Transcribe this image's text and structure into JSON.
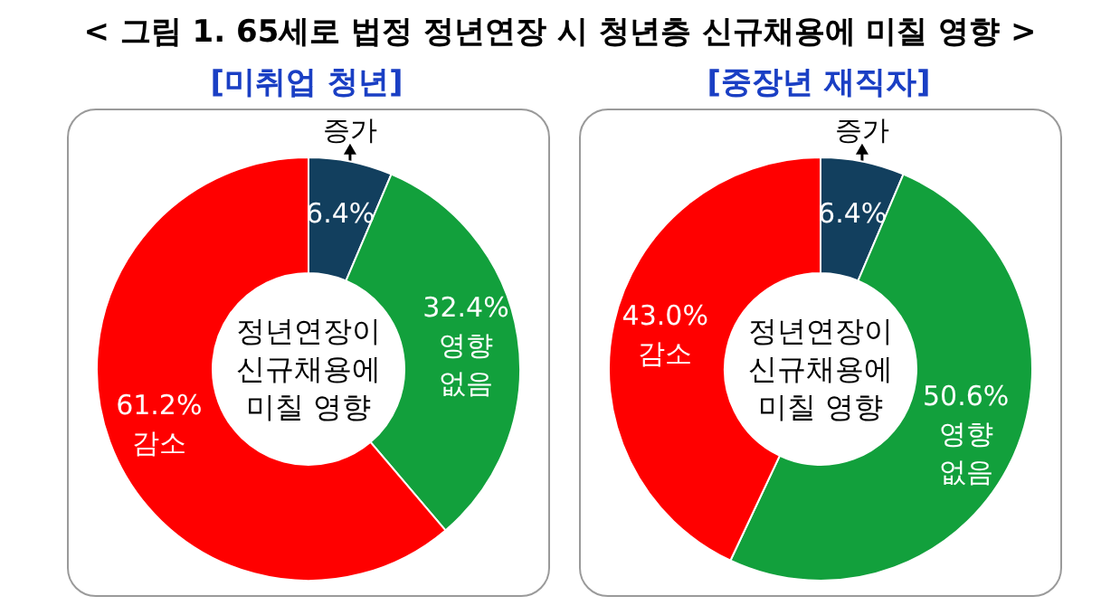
{
  "chart_data": [
    {
      "type": "donut",
      "title": "< 그림 1. 65세로 법정 정년연장 시 청년층 신규채용에 미칠 영향 >",
      "subtitle": "[미취업 청년]",
      "categories": [
        "증가",
        "영향 없음",
        "감소"
      ],
      "values": [
        6.4,
        32.4,
        61.2
      ],
      "value_labels": [
        "6.4%",
        "32.4%",
        "61.2%"
      ],
      "colors": [
        "#123f5e",
        "#12a03c",
        "#ff0000"
      ],
      "annotations": [
        "정년연장이\n신규채용에\n미칠 영향"
      ],
      "legend": false
    },
    {
      "type": "donut",
      "subtitle": "[중장년 재직자]",
      "categories": [
        "증가",
        "영향 없음",
        "감소"
      ],
      "values": [
        6.4,
        50.6,
        43.0
      ],
      "value_labels": [
        "6.4%",
        "50.6%",
        "43.0%"
      ],
      "colors": [
        "#123f5e",
        "#12a03c",
        "#ff0000"
      ],
      "annotations": [
        "정년연장이\n신규채용에\n미칠 영향"
      ],
      "legend": false
    }
  ]
}
